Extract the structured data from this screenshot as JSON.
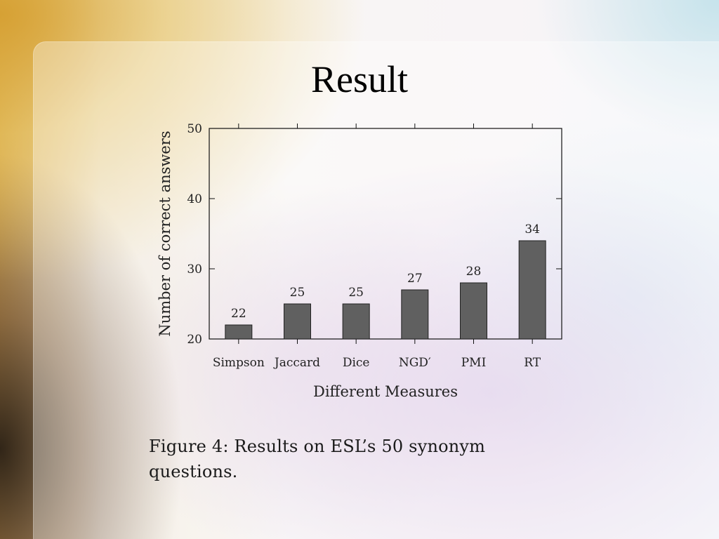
{
  "slide": {
    "title": "Result",
    "caption": "Figure 4: Results on ESL’s 50 synonym questions."
  },
  "chart_data": {
    "type": "bar",
    "categories": [
      "Simpson",
      "Jaccard",
      "Dice",
      "NGD′",
      "PMI",
      "RT"
    ],
    "values": [
      22,
      25,
      25,
      27,
      28,
      34
    ],
    "xlabel": "Different Measures",
    "ylabel": "Number of correct answers",
    "ylim": [
      20,
      50
    ],
    "yticks": [
      20,
      30,
      40,
      50
    ],
    "data_labels": true,
    "grid": false,
    "bar_color": "#606060"
  }
}
